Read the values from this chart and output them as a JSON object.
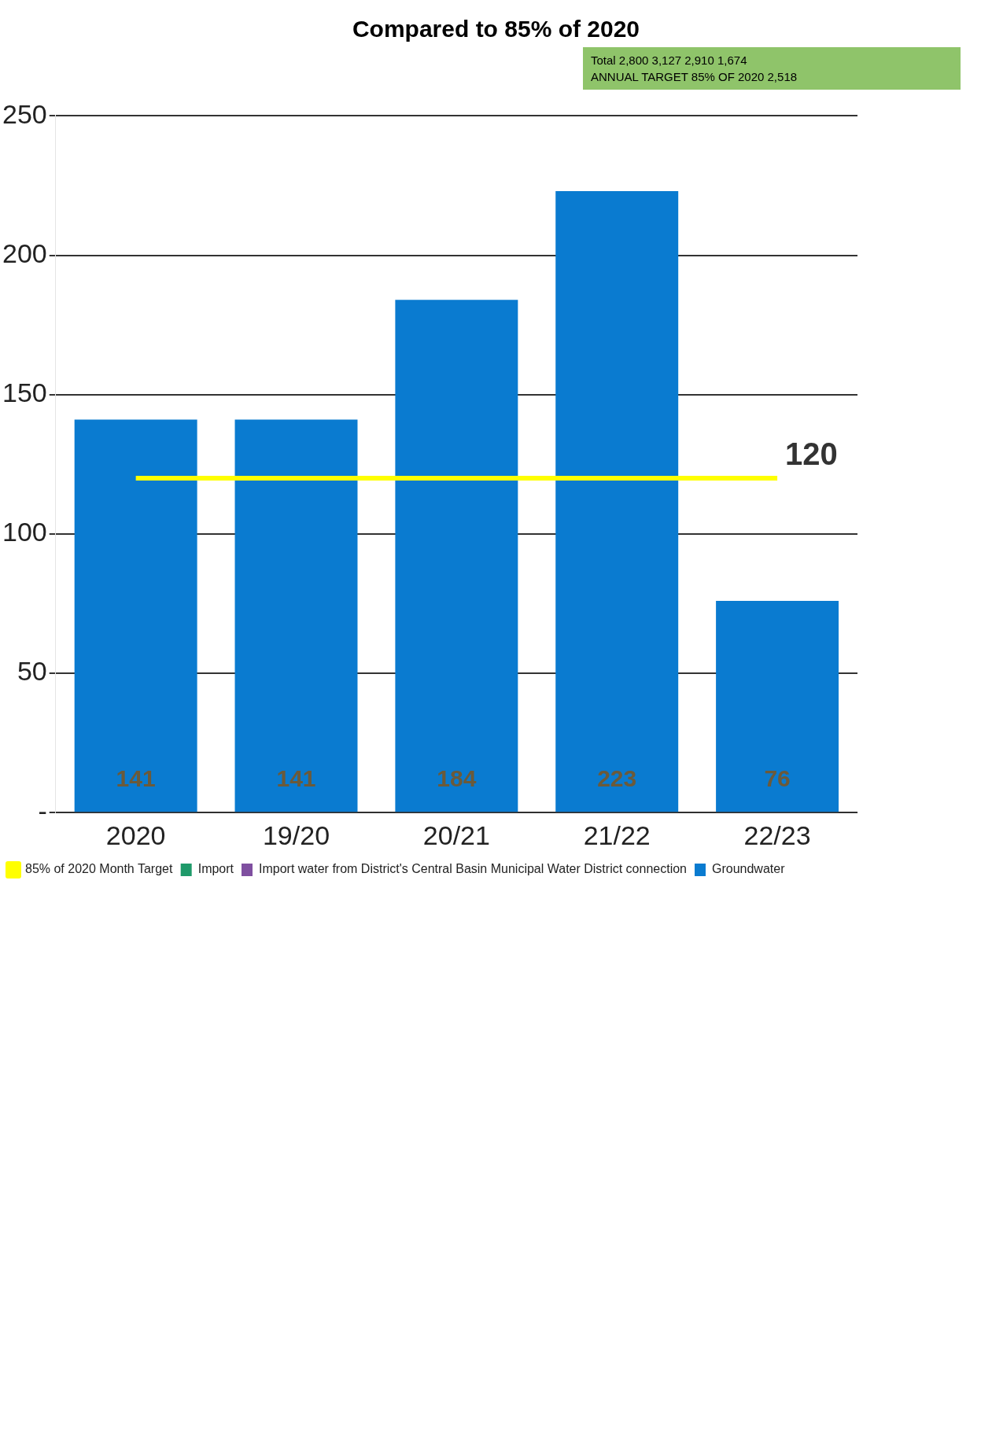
{
  "chart_data": {
    "type": "bar",
    "title": "Compared to 85% of 2020",
    "categories": [
      "2020",
      "19/20",
      "20/21",
      "21/22",
      "22/23"
    ],
    "stacked": true,
    "series": [
      {
        "name": "Import",
        "color": "#1f9a6a",
        "values": [
          null,
          null,
          null,
          null,
          null
        ]
      },
      {
        "name": "Import water from District's Central Basin Municipal Water District connection",
        "color": "#7f4fa0",
        "values": [
          null,
          null,
          null,
          null,
          null
        ]
      },
      {
        "name": "Groundwater",
        "color": "#0a7bd0",
        "values": [
          141,
          141,
          184,
          223,
          76
        ],
        "value_labels": [
          "141",
          "141",
          "184",
          "223",
          "76"
        ]
      },
      {
        "name": "85% of 2020 Month Target",
        "type": "line",
        "color": "#ffff00",
        "values": [
          120,
          120,
          120,
          120,
          120
        ],
        "value_labels": [
          null,
          null,
          null,
          null,
          "120"
        ]
      }
    ],
    "ylim": [
      0,
      250
    ],
    "yticks": [
      {
        "value": 0,
        "label": "-"
      },
      50,
      100,
      150,
      200,
      250
    ],
    "grid": "y",
    "legend": "bottom",
    "annotations": [
      "Total 2,800 3,127 2,910 1,674",
      "ANNUAL TARGET 85% OF 2020 2,518"
    ]
  }
}
